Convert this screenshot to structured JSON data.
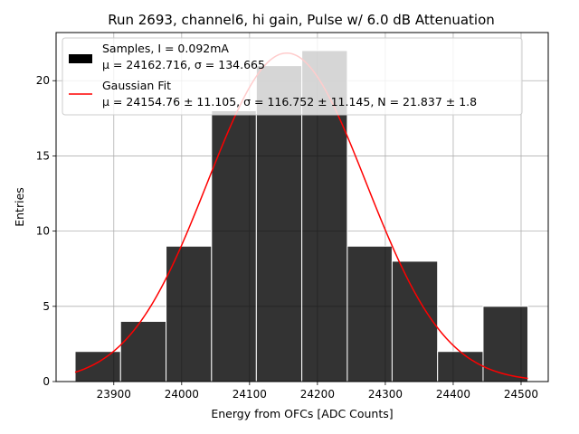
{
  "chart_data": {
    "type": "bar",
    "title": "Run 2693, channel6, hi gain, Pulse w/ 6.0 dB Attenuation",
    "xlabel": "Energy from OFCs [ADC Counts]",
    "ylabel": "Entries",
    "xlim": [
      23815,
      24540
    ],
    "ylim": [
      0,
      23.2
    ],
    "xticks": [
      23900,
      24000,
      24100,
      24200,
      24300,
      24400,
      24500
    ],
    "yticks": [
      0,
      5,
      10,
      15,
      20
    ],
    "grid": true,
    "legend_position": "top-left",
    "histogram": {
      "name": "Samples, I = 0.092mA",
      "stats_label": "μ = 24162.716, σ = 134.665",
      "color": "#000000",
      "bin_edges": [
        23843,
        23910,
        23977,
        24044,
        24110,
        24177,
        24244,
        24310,
        24377,
        24444,
        24510
      ],
      "counts": [
        2,
        4,
        9,
        18,
        21,
        22,
        9,
        8,
        2,
        5
      ]
    },
    "fit": {
      "name": "Gaussian Fit",
      "stats_label": "μ = 24154.76 ± 11.105, σ = 116.752 ± 11.145, N = 21.837 ± 1.8",
      "color": "#ff0000",
      "mu": 24154.76,
      "sigma": 116.752,
      "N": 21.837,
      "x_range": [
        23843,
        24510
      ]
    }
  }
}
